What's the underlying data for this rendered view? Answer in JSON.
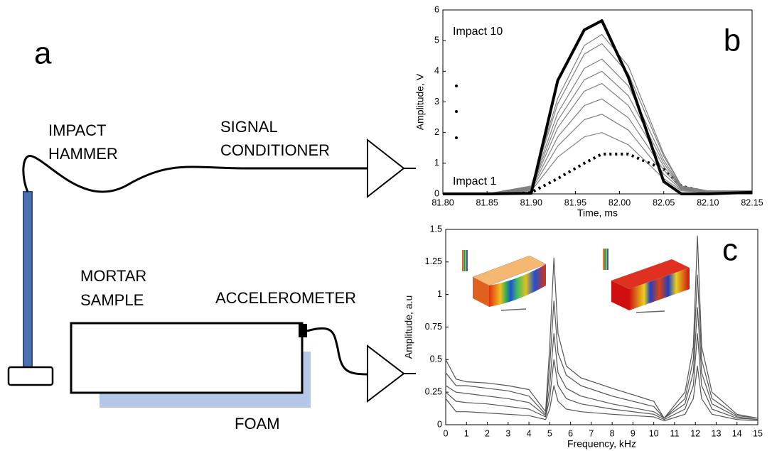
{
  "diagram": {
    "panel_label": "a",
    "hammer": [
      "IMPACT",
      "HAMMER"
    ],
    "conditioner": [
      "SIGNAL",
      "CONDITIONER"
    ],
    "sample": [
      "MORTAR",
      "SAMPLE"
    ],
    "sensor": "ACCELEROMETER",
    "foam": "FOAM"
  },
  "chart_data": [
    {
      "type": "line",
      "panel_label": "b",
      "xlabel": "Time, ms",
      "ylabel": "Amplitude, V",
      "annotations": [
        "Impact 10",
        "Impact 1"
      ],
      "x": [
        81.8,
        81.85,
        81.9,
        81.93,
        81.96,
        81.98,
        82.01,
        82.05,
        82.07,
        82.1,
        82.15
      ],
      "xlim": [
        81.8,
        82.15
      ],
      "xticks": [
        {
          "value": 81.8,
          "label": "81.80"
        },
        81.85,
        {
          "value": 81.9,
          "label": "81.90"
        },
        81.95,
        {
          "value": 82.0,
          "label": "82.00"
        },
        82.05,
        {
          "value": 82.1,
          "label": "82.10"
        },
        82.15
      ],
      "ylim": [
        0,
        6
      ],
      "yticks": [
        0,
        1,
        2,
        3,
        4,
        5,
        6
      ],
      "series": [
        {
          "color": "#000000",
          "style": "dotted",
          "values": [
            0,
            0,
            0.05,
            0.5,
            1.0,
            1.3,
            1.3,
            0.8,
            0.25,
            0.05,
            0.05
          ]
        },
        {
          "color": "#808080",
          "style": "thin",
          "values": [
            0,
            0,
            0.1,
            1.2,
            1.86,
            2.0,
            1.6,
            0.5,
            0.1,
            0.04,
            0.04
          ]
        },
        {
          "color": "#808080",
          "style": "thin",
          "values": [
            0,
            0,
            0.13,
            1.56,
            2.42,
            2.6,
            2.08,
            0.65,
            0.13,
            0.05,
            0.05
          ]
        },
        {
          "color": "#808080",
          "style": "thin",
          "values": [
            0,
            0,
            0.16,
            1.86,
            2.88,
            3.1,
            2.48,
            0.78,
            0.16,
            0.06,
            0.06
          ]
        },
        {
          "color": "#808080",
          "style": "thin",
          "values": [
            0,
            0,
            0.18,
            2.16,
            3.35,
            3.6,
            2.88,
            0.9,
            0.18,
            0.07,
            0.07
          ]
        },
        {
          "color": "#808080",
          "style": "thin",
          "values": [
            0,
            0,
            0.2,
            2.4,
            3.72,
            4.0,
            3.2,
            1.0,
            0.2,
            0.08,
            0.08
          ]
        },
        {
          "color": "#808080",
          "style": "thin",
          "values": [
            0,
            0,
            0.22,
            2.64,
            4.09,
            4.4,
            3.52,
            1.1,
            0.22,
            0.09,
            0.09
          ]
        },
        {
          "color": "#808080",
          "style": "thin",
          "values": [
            0,
            0,
            0.25,
            2.94,
            4.56,
            4.9,
            3.92,
            1.23,
            0.25,
            0.1,
            0.1
          ]
        },
        {
          "color": "#808080",
          "style": "thin",
          "values": [
            0,
            0,
            0.26,
            3.12,
            4.84,
            5.2,
            4.16,
            1.3,
            0.26,
            0.1,
            0.1
          ]
        },
        {
          "color": "#000000",
          "style": "bold",
          "values": [
            0,
            0,
            0.02,
            3.7,
            5.35,
            5.65,
            3.8,
            0.4,
            0,
            0,
            0.05
          ]
        }
      ]
    },
    {
      "type": "line",
      "panel_label": "c",
      "xlabel": "Frequency, kHz",
      "ylabel": "Amplitude, a.u",
      "x": [
        0,
        0.5,
        1,
        2,
        3,
        4,
        4.8,
        5.0,
        5.2,
        5.4,
        5.8,
        6.5,
        8,
        10,
        10.5,
        11.5,
        11.9,
        12.1,
        12.3,
        12.8,
        14,
        15
      ],
      "xlim": [
        0,
        15
      ],
      "xticks": [
        0,
        1,
        2,
        3,
        4,
        5,
        6,
        7,
        8,
        9,
        10,
        11,
        12,
        13,
        14,
        15
      ],
      "ylim": [
        0,
        1.5
      ],
      "yticks": [
        0,
        0.25,
        0.5,
        0.75,
        1,
        1.25,
        1.5
      ],
      "series": [
        {
          "color": "#555555",
          "style": "thin",
          "values": [
            0.5,
            0.35,
            0.33,
            0.32,
            0.3,
            0.27,
            0.1,
            0.6,
            1.28,
            0.7,
            0.45,
            0.36,
            0.28,
            0.18,
            0.05,
            0.25,
            0.6,
            1.45,
            0.6,
            0.25,
            0.08,
            0.05
          ]
        },
        {
          "color": "#555555",
          "style": "thin",
          "values": [
            0.4,
            0.3,
            0.3,
            0.28,
            0.26,
            0.22,
            0.08,
            0.45,
            0.95,
            0.55,
            0.38,
            0.3,
            0.22,
            0.14,
            0.05,
            0.2,
            0.5,
            1.15,
            0.5,
            0.2,
            0.07,
            0.05
          ]
        },
        {
          "color": "#555555",
          "style": "thin",
          "values": [
            0.3,
            0.25,
            0.24,
            0.22,
            0.2,
            0.17,
            0.07,
            0.3,
            0.7,
            0.4,
            0.28,
            0.22,
            0.16,
            0.1,
            0.05,
            0.16,
            0.4,
            0.9,
            0.4,
            0.16,
            0.06,
            0.04
          ]
        },
        {
          "color": "#555555",
          "style": "thin",
          "values": [
            0.25,
            0.18,
            0.17,
            0.16,
            0.14,
            0.12,
            0.06,
            0.2,
            0.5,
            0.3,
            0.2,
            0.16,
            0.12,
            0.08,
            0.04,
            0.12,
            0.3,
            0.7,
            0.3,
            0.12,
            0.05,
            0.04
          ]
        },
        {
          "color": "#555555",
          "style": "thin",
          "values": [
            0.2,
            0.1,
            0.1,
            0.09,
            0.08,
            0.07,
            0.04,
            0.12,
            0.3,
            0.18,
            0.12,
            0.1,
            0.08,
            0.06,
            0.03,
            0.08,
            0.2,
            0.45,
            0.2,
            0.08,
            0.04,
            0.03
          ]
        }
      ]
    }
  ]
}
